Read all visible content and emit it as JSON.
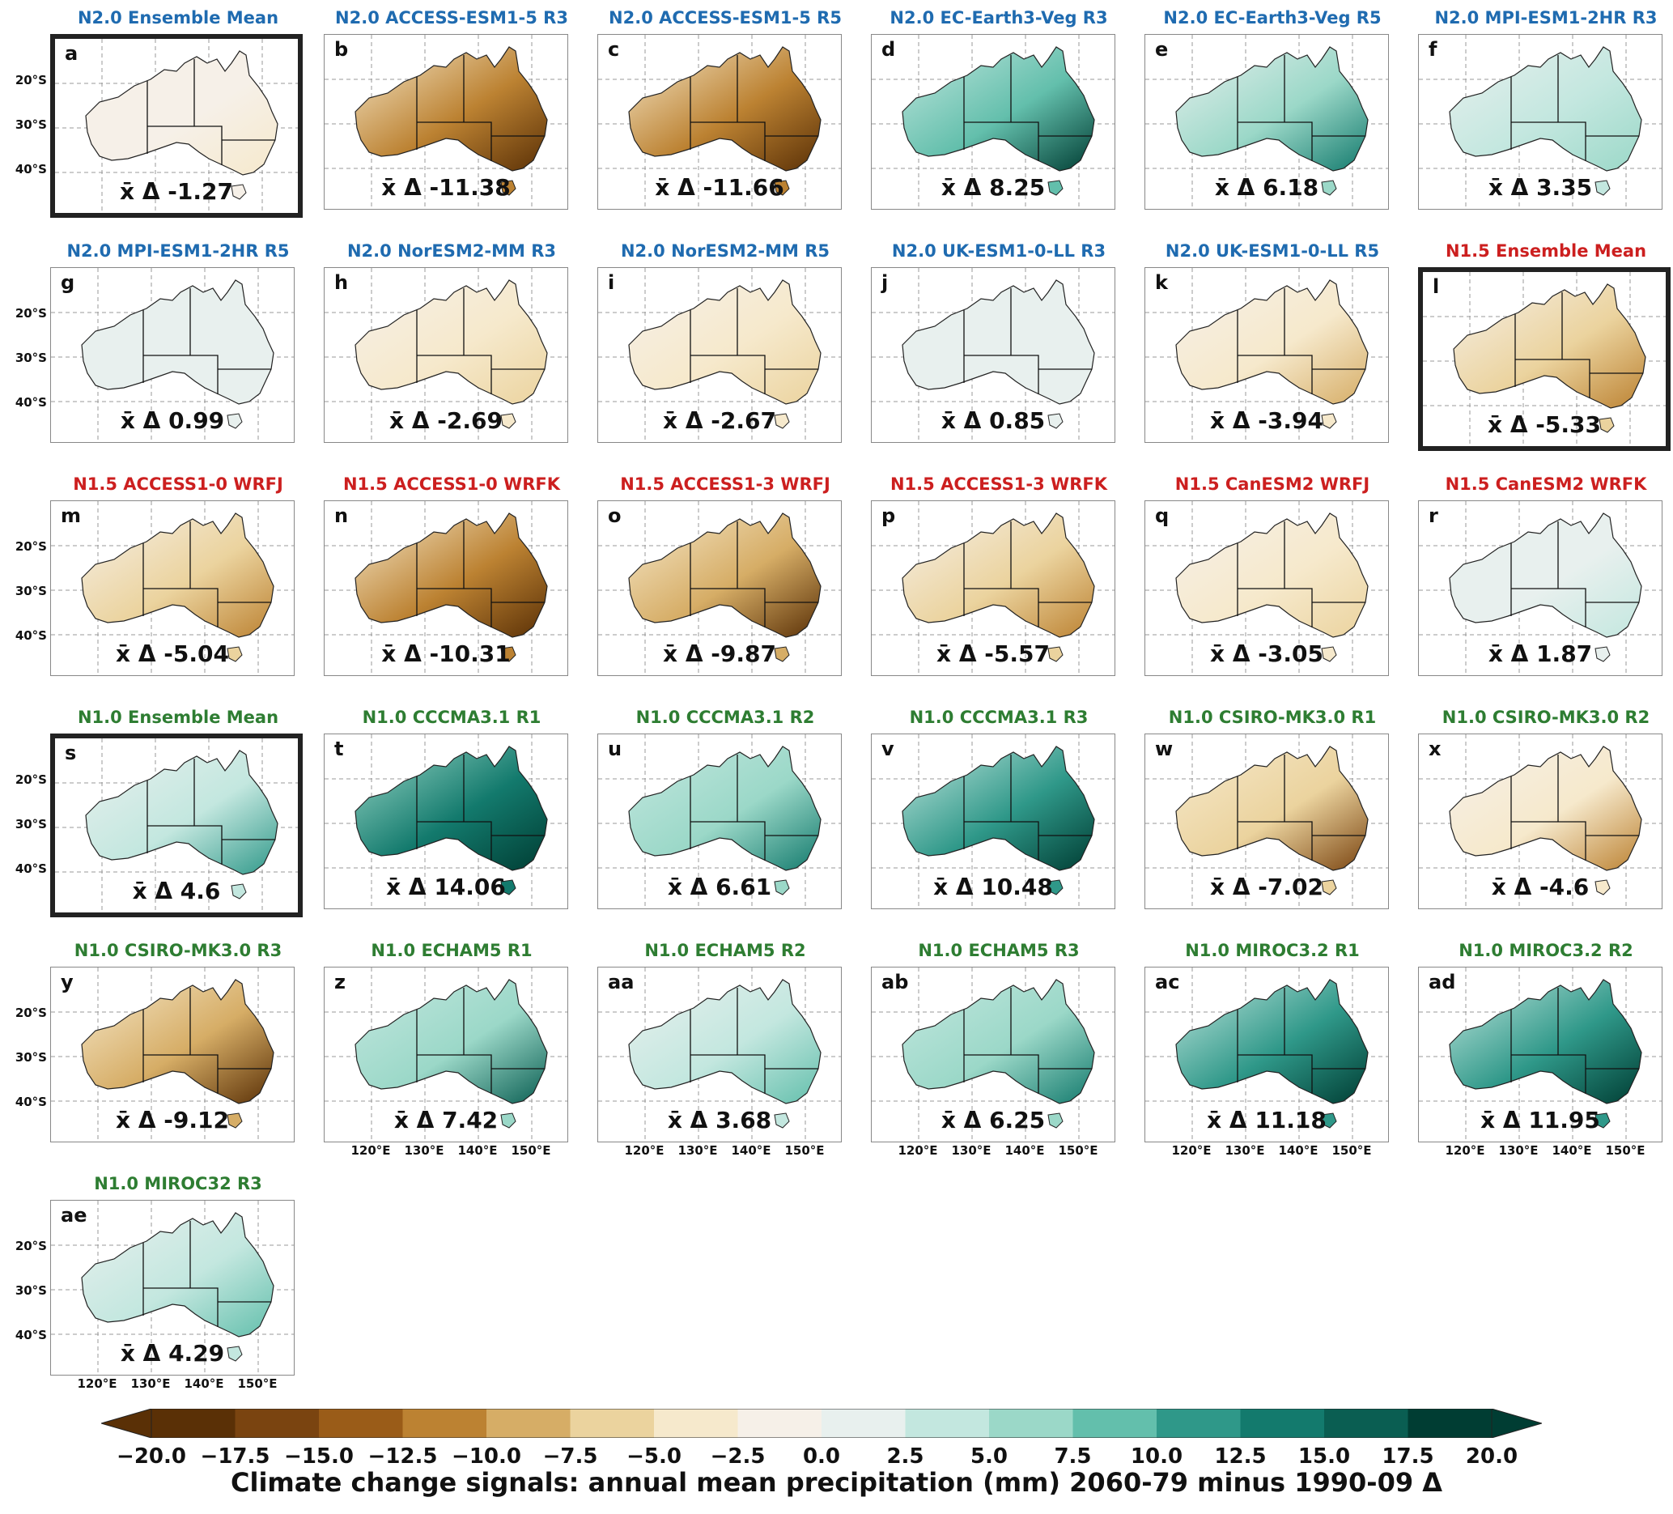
{
  "colors": {
    "N2.0": "#1f6bb0",
    "N1.5": "#cc1f1f",
    "N1.0": "#2e7d32",
    "scale": [
      "#5a3006",
      "#7a4410",
      "#9a5c18",
      "#bc8232",
      "#d6ad66",
      "#ebd39e",
      "#f6e9cc",
      "#f6f0e8",
      "#e8f0ee",
      "#c3e7df",
      "#9bd8c8",
      "#63bfac",
      "#2f9889",
      "#137a6d",
      "#0a5e52",
      "#003d33"
    ]
  },
  "axis": {
    "lat_ticks": [
      "20°S",
      "30°S",
      "40°S"
    ],
    "lon_ticks": [
      "120°E",
      "130°E",
      "140°E",
      "150°E"
    ]
  },
  "panels": [
    {
      "id": "a",
      "group": "N2.0",
      "title": "N2.0 Ensemble Mean",
      "mean": "x̄ Δ -1.27",
      "value": -1.27,
      "highlight": true,
      "lat": true,
      "lon": false
    },
    {
      "id": "b",
      "group": "N2.0",
      "title": "N2.0 ACCESS-ESM1-5 R3",
      "mean": "x̄ Δ -11.38",
      "value": -11.38,
      "highlight": false,
      "lat": false,
      "lon": false
    },
    {
      "id": "c",
      "group": "N2.0",
      "title": "N2.0 ACCESS-ESM1-5 R5",
      "mean": "x̄ Δ -11.66",
      "value": -11.66,
      "highlight": false,
      "lat": false,
      "lon": false
    },
    {
      "id": "d",
      "group": "N2.0",
      "title": "N2.0 EC-Earth3-Veg R3",
      "mean": "x̄ Δ 8.25",
      "value": 8.25,
      "highlight": false,
      "lat": false,
      "lon": false
    },
    {
      "id": "e",
      "group": "N2.0",
      "title": "N2.0 EC-Earth3-Veg R5",
      "mean": "x̄ Δ 6.18",
      "value": 6.18,
      "highlight": false,
      "lat": false,
      "lon": false
    },
    {
      "id": "f",
      "group": "N2.0",
      "title": "N2.0 MPI-ESM1-2HR R3",
      "mean": "x̄ Δ 3.35",
      "value": 3.35,
      "highlight": false,
      "lat": false,
      "lon": false
    },
    {
      "id": "g",
      "group": "N2.0",
      "title": "N2.0 MPI-ESM1-2HR R5",
      "mean": "x̄ Δ 0.99",
      "value": 0.99,
      "highlight": false,
      "lat": true,
      "lon": false
    },
    {
      "id": "h",
      "group": "N2.0",
      "title": "N2.0 NorESM2-MM R3",
      "mean": "x̄ Δ -2.69",
      "value": -2.69,
      "highlight": false,
      "lat": false,
      "lon": false
    },
    {
      "id": "i",
      "group": "N2.0",
      "title": "N2.0 NorESM2-MM R5",
      "mean": "x̄ Δ -2.67",
      "value": -2.67,
      "highlight": false,
      "lat": false,
      "lon": false
    },
    {
      "id": "j",
      "group": "N2.0",
      "title": "N2.0 UK-ESM1-0-LL R3",
      "mean": "x̄ Δ 0.85",
      "value": 0.85,
      "highlight": false,
      "lat": false,
      "lon": false
    },
    {
      "id": "k",
      "group": "N2.0",
      "title": "N2.0 UK-ESM1-0-LL R5",
      "mean": "x̄ Δ -3.94",
      "value": -3.94,
      "highlight": false,
      "lat": false,
      "lon": false
    },
    {
      "id": "l",
      "group": "N1.5",
      "title": "N1.5 Ensemble Mean",
      "mean": "x̄ Δ -5.33",
      "value": -5.33,
      "highlight": true,
      "lat": false,
      "lon": false
    },
    {
      "id": "m",
      "group": "N1.5",
      "title": "N1.5 ACCESS1-0 WRFJ",
      "mean": "x̄ Δ -5.04",
      "value": -5.04,
      "highlight": false,
      "lat": true,
      "lon": false
    },
    {
      "id": "n",
      "group": "N1.5",
      "title": "N1.5 ACCESS1-0 WRFK",
      "mean": "x̄ Δ -10.31",
      "value": -10.31,
      "highlight": false,
      "lat": false,
      "lon": false
    },
    {
      "id": "o",
      "group": "N1.5",
      "title": "N1.5 ACCESS1-3 WRFJ",
      "mean": "x̄ Δ -9.87",
      "value": -9.87,
      "highlight": false,
      "lat": false,
      "lon": false
    },
    {
      "id": "p",
      "group": "N1.5",
      "title": "N1.5 ACCESS1-3 WRFK",
      "mean": "x̄ Δ -5.57",
      "value": -5.57,
      "highlight": false,
      "lat": false,
      "lon": false
    },
    {
      "id": "q",
      "group": "N1.5",
      "title": "N1.5 CanESM2 WRFJ",
      "mean": "x̄ Δ -3.05",
      "value": -3.05,
      "highlight": false,
      "lat": false,
      "lon": false
    },
    {
      "id": "r",
      "group": "N1.5",
      "title": "N1.5 CanESM2 WRFK",
      "mean": "x̄ Δ 1.87",
      "value": 1.87,
      "highlight": false,
      "lat": false,
      "lon": false
    },
    {
      "id": "s",
      "group": "N1.0",
      "title": "N1.0 Ensemble Mean",
      "mean": "x̄ Δ 4.6",
      "value": 4.6,
      "highlight": true,
      "lat": true,
      "lon": false
    },
    {
      "id": "t",
      "group": "N1.0",
      "title": "N1.0 CCCMA3.1 R1",
      "mean": "x̄ Δ 14.06",
      "value": 14.06,
      "highlight": false,
      "lat": false,
      "lon": false
    },
    {
      "id": "u",
      "group": "N1.0",
      "title": "N1.0 CCCMA3.1 R2",
      "mean": "x̄ Δ 6.61",
      "value": 6.61,
      "highlight": false,
      "lat": false,
      "lon": false
    },
    {
      "id": "v",
      "group": "N1.0",
      "title": "N1.0 CCCMA3.1 R3",
      "mean": "x̄ Δ 10.48",
      "value": 10.48,
      "highlight": false,
      "lat": false,
      "lon": false
    },
    {
      "id": "w",
      "group": "N1.0",
      "title": "N1.0 CSIRO-MK3.0 R1",
      "mean": "x̄ Δ -7.02",
      "value": -7.02,
      "highlight": false,
      "lat": false,
      "lon": false
    },
    {
      "id": "x",
      "group": "N1.0",
      "title": "N1.0 CSIRO-MK3.0 R2",
      "mean": "x̄ Δ -4.6",
      "value": -4.6,
      "highlight": false,
      "lat": false,
      "lon": false
    },
    {
      "id": "y",
      "group": "N1.0",
      "title": "N1.0 CSIRO-MK3.0 R3",
      "mean": "x̄ Δ -9.12",
      "value": -9.12,
      "highlight": false,
      "lat": true,
      "lon": false
    },
    {
      "id": "z",
      "group": "N1.0",
      "title": "N1.0 ECHAM5 R1",
      "mean": "x̄ Δ 7.42",
      "value": 7.42,
      "highlight": false,
      "lat": false,
      "lon": true
    },
    {
      "id": "aa",
      "group": "N1.0",
      "title": "N1.0 ECHAM5 R2",
      "mean": "x̄ Δ 3.68",
      "value": 3.68,
      "highlight": false,
      "lat": false,
      "lon": true
    },
    {
      "id": "ab",
      "group": "N1.0",
      "title": "N1.0 ECHAM5 R3",
      "mean": "x̄ Δ 6.25",
      "value": 6.25,
      "highlight": false,
      "lat": false,
      "lon": true
    },
    {
      "id": "ac",
      "group": "N1.0",
      "title": "N1.0 MIROC3.2 R1",
      "mean": "x̄ Δ 11.18",
      "value": 11.18,
      "highlight": false,
      "lat": false,
      "lon": true
    },
    {
      "id": "ad",
      "group": "N1.0",
      "title": "N1.0 MIROC3.2 R2",
      "mean": "x̄ Δ 11.95",
      "value": 11.95,
      "highlight": false,
      "lat": false,
      "lon": true
    },
    {
      "id": "ae",
      "group": "N1.0",
      "title": "N1.0 MIROC32 R3",
      "mean": "x̄ Δ 4.29",
      "value": 4.29,
      "highlight": false,
      "lat": true,
      "lon": true
    }
  ],
  "colorbar": {
    "ticks": [
      "−20.0",
      "−17.5",
      "−15.0",
      "−12.5",
      "−10.0",
      "−7.5",
      "−5.0",
      "−2.5",
      "0.0",
      "2.5",
      "5.0",
      "7.5",
      "10.0",
      "12.5",
      "15.0",
      "17.5",
      "20.0"
    ],
    "label": "Climate change signals: annual mean precipitation (mm) 2060-79 minus 1990-09 Δ"
  }
}
